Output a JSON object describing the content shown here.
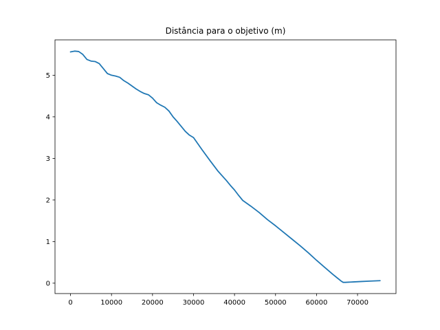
{
  "chart_data": {
    "type": "line",
    "title": "Distância para o objetivo (m)",
    "xlabel": "",
    "ylabel": "",
    "xlim": [
      -3780,
      79380
    ],
    "ylim": [
      -0.25,
      5.85
    ],
    "x_ticks": [
      0,
      10000,
      20000,
      30000,
      40000,
      50000,
      60000,
      70000
    ],
    "y_ticks": [
      0,
      1,
      2,
      3,
      4,
      5
    ],
    "grid": false,
    "legend": "none",
    "series": [
      {
        "color": "#1f77b4",
        "x": [
          0,
          1000,
          2000,
          3000,
          4000,
          5000,
          6000,
          7000,
          8000,
          9000,
          10000,
          11000,
          12000,
          13000,
          14000,
          15000,
          16000,
          17000,
          18000,
          19000,
          20000,
          21000,
          22000,
          23000,
          24000,
          25000,
          26000,
          27000,
          28000,
          29000,
          30000,
          32000,
          34000,
          36000,
          38000,
          39000,
          40000,
          41000,
          42000,
          43000,
          44000,
          46000,
          48000,
          50000,
          52000,
          54000,
          56000,
          58000,
          60000,
          62000,
          64000,
          65000,
          66000,
          66500,
          67000,
          69000,
          71000,
          73000,
          75500
        ],
        "y": [
          5.56,
          5.58,
          5.57,
          5.5,
          5.38,
          5.34,
          5.33,
          5.28,
          5.16,
          5.04,
          5.0,
          4.98,
          4.95,
          4.87,
          4.81,
          4.74,
          4.67,
          4.61,
          4.56,
          4.53,
          4.45,
          4.34,
          4.28,
          4.23,
          4.14,
          4.0,
          3.89,
          3.77,
          3.65,
          3.56,
          3.5,
          3.22,
          2.95,
          2.69,
          2.47,
          2.35,
          2.24,
          2.11,
          1.99,
          1.92,
          1.85,
          1.7,
          1.53,
          1.38,
          1.22,
          1.06,
          0.9,
          0.73,
          0.55,
          0.38,
          0.21,
          0.13,
          0.05,
          0.02,
          0.02,
          0.03,
          0.04,
          0.05,
          0.06
        ]
      }
    ]
  }
}
